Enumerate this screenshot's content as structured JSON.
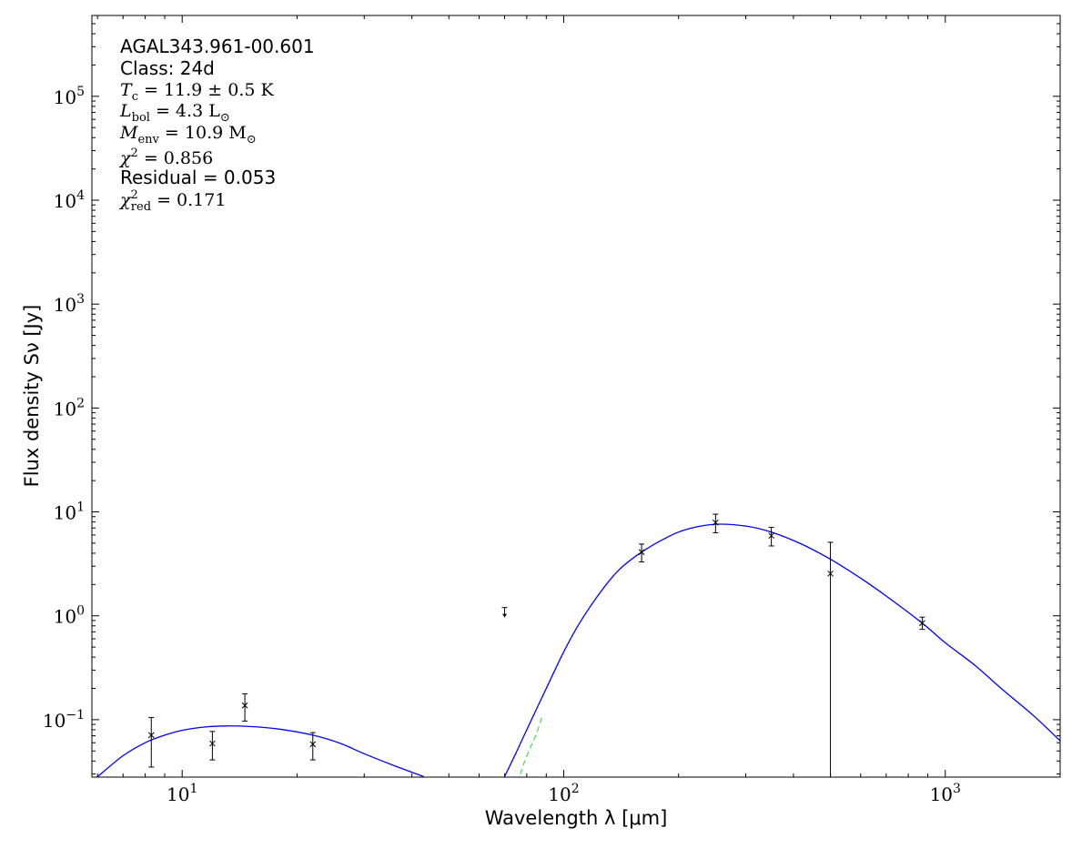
{
  "chart_data": {
    "type": "scatter",
    "xscale": "log",
    "yscale": "log",
    "xlim": [
      5.8,
      2000
    ],
    "ylim": [
      0.028,
      600000
    ],
    "xlabel": "Wavelength λ [μm]",
    "ylabel": "Flux density Sν [Jy]",
    "x_ticks": [
      {
        "value": 10,
        "base": "10",
        "exp": "1"
      },
      {
        "value": 100,
        "base": "10",
        "exp": "2"
      },
      {
        "value": 1000,
        "base": "10",
        "exp": "3"
      }
    ],
    "y_ticks": [
      {
        "value": 0.1,
        "base": "10",
        "exp": "−1"
      },
      {
        "value": 1,
        "base": "10",
        "exp": "0"
      },
      {
        "value": 10,
        "base": "10",
        "exp": "1"
      },
      {
        "value": 100,
        "base": "10",
        "exp": "2"
      },
      {
        "value": 1000,
        "base": "10",
        "exp": "3"
      },
      {
        "value": 10000,
        "base": "10",
        "exp": "4"
      },
      {
        "value": 100000,
        "base": "10",
        "exp": "5"
      }
    ],
    "annotations": {
      "source": "AGAL343.961-00.601",
      "class_label": "Class: 24d",
      "tc": {
        "sym": "T",
        "sub": "c",
        "val": " = 11.9 ± 0.5 K"
      },
      "lbol": {
        "sym": "L",
        "sub": "bol",
        "val": " = 4.3 L",
        "unit_sub": "⊙"
      },
      "menv": {
        "sym": "M",
        "sub": "env",
        "val": " = 10.9 M",
        "unit_sub": "⊙"
      },
      "chi2": {
        "sym": "χ",
        "sup": "2",
        "val": " = 0.856"
      },
      "residual": "Residual = 0.053",
      "chi2red": {
        "sym": "χ",
        "sup": "2",
        "sub": "red",
        "val": " = 0.171"
      }
    },
    "points": [
      {
        "x": 8.3,
        "y": 0.071,
        "err_lo": 0.035,
        "err_hi": 0.105
      },
      {
        "x": 12.0,
        "y": 0.059,
        "err_lo": 0.041,
        "err_hi": 0.077
      },
      {
        "x": 14.6,
        "y": 0.137,
        "err_lo": 0.097,
        "err_hi": 0.177
      },
      {
        "x": 22.0,
        "y": 0.058,
        "err_lo": 0.041,
        "err_hi": 0.075
      },
      {
        "x": 160,
        "y": 4.1,
        "err_lo": 3.3,
        "err_hi": 4.9
      },
      {
        "x": 250,
        "y": 7.9,
        "err_lo": 6.3,
        "err_hi": 9.5
      },
      {
        "x": 350,
        "y": 5.9,
        "err_lo": 4.7,
        "err_hi": 7.1
      },
      {
        "x": 500,
        "y": 2.55,
        "err_lo": 0.028,
        "err_hi": 5.1
      },
      {
        "x": 870,
        "y": 0.85,
        "err_lo": 0.74,
        "err_hi": 0.97
      }
    ],
    "upper_limits": [
      {
        "x": 70,
        "y": 1.2
      }
    ],
    "model_curves": [
      {
        "name": "warm component",
        "color": "#0000ff",
        "points": [
          [
            6.0,
            0.0283
          ],
          [
            7.0,
            0.045
          ],
          [
            8.0,
            0.06
          ],
          [
            9.0,
            0.071
          ],
          [
            10.0,
            0.079
          ],
          [
            11.5,
            0.085
          ],
          [
            13.0,
            0.087
          ],
          [
            15.0,
            0.086
          ],
          [
            18.0,
            0.081
          ],
          [
            22.0,
            0.071
          ],
          [
            26.0,
            0.059
          ],
          [
            30.0,
            0.047
          ],
          [
            36.0,
            0.036
          ],
          [
            43.0,
            0.0283
          ]
        ]
      },
      {
        "name": "cold component",
        "color": "#0000ff",
        "points": [
          [
            70,
            0.0283
          ],
          [
            75,
            0.048
          ],
          [
            80,
            0.08
          ],
          [
            90,
            0.2
          ],
          [
            100,
            0.45
          ],
          [
            110,
            0.85
          ],
          [
            125,
            1.7
          ],
          [
            140,
            2.8
          ],
          [
            160,
            4.1
          ],
          [
            185,
            5.6
          ],
          [
            210,
            6.8
          ],
          [
            250,
            7.6
          ],
          [
            300,
            7.3
          ],
          [
            350,
            6.4
          ],
          [
            420,
            4.9
          ],
          [
            500,
            3.5
          ],
          [
            600,
            2.3
          ],
          [
            700,
            1.55
          ],
          [
            870,
            0.85
          ],
          [
            1000,
            0.55
          ],
          [
            1200,
            0.33
          ],
          [
            1400,
            0.2
          ],
          [
            1700,
            0.11
          ],
          [
            2000,
            0.0625
          ]
        ]
      },
      {
        "name": "dashed component",
        "color": "#5cd65c",
        "dashed": true,
        "points": [
          [
            77,
            0.03
          ],
          [
            79,
            0.04
          ],
          [
            82,
            0.055
          ],
          [
            85,
            0.075
          ],
          [
            88,
            0.11
          ]
        ]
      }
    ],
    "colors": {
      "model": "#0000ff",
      "dashed": "#5cd65c",
      "data": "#000000"
    }
  }
}
